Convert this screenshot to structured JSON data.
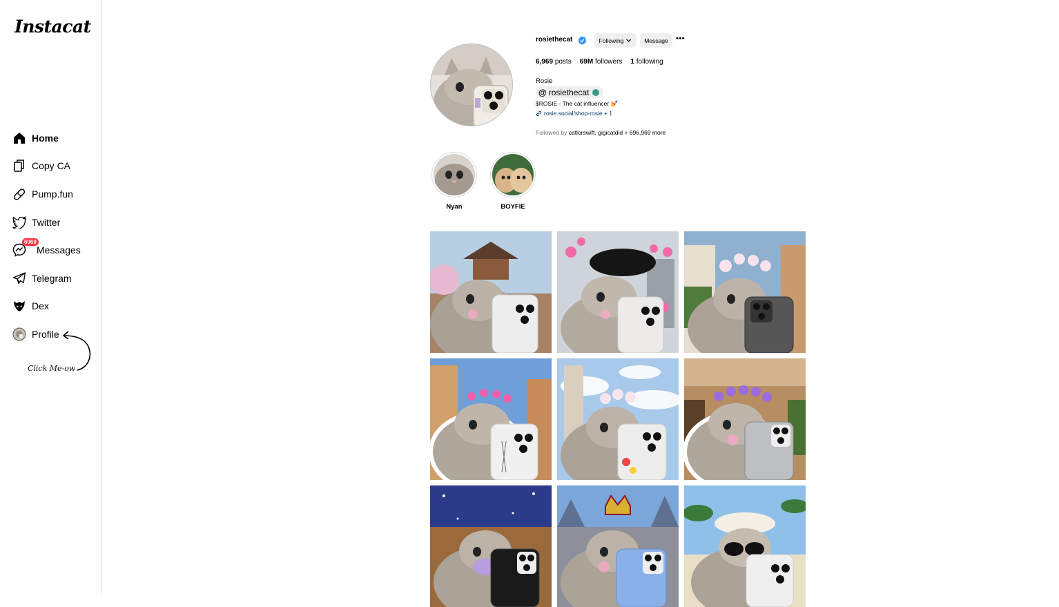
{
  "app": {
    "logo": "Instacat"
  },
  "sidebar": {
    "items": [
      {
        "label": "Home",
        "icon": "home-icon"
      },
      {
        "label": "Copy CA",
        "icon": "copy-icon"
      },
      {
        "label": "Pump.fun",
        "icon": "pill-icon"
      },
      {
        "label": "Twitter",
        "icon": "twitter-icon"
      },
      {
        "label": "Messages",
        "icon": "messenger-icon",
        "badge": "6969"
      },
      {
        "label": "Telegram",
        "icon": "telegram-icon"
      },
      {
        "label": "Dex",
        "icon": "dex-icon"
      },
      {
        "label": "Profile",
        "icon": "avatar-icon"
      }
    ],
    "click_hint": "Click Me-ow"
  },
  "profile": {
    "username": "rosiethecat",
    "following_button": "Following",
    "message_button": "Message",
    "more": "•••",
    "stats": {
      "posts": "6,969",
      "posts_label": "posts",
      "followers": "69M",
      "followers_label": "followers",
      "following": "1",
      "following_label": "following"
    },
    "name": "Rosie",
    "handle": "rosiethecat",
    "bio": "$ROSIE - The cat influencer 💅",
    "link": "rosie.social/shop-rosie + 1",
    "followed_by_prefix": "Followed by ",
    "followed_by_names": "catlorswift, gigicatdid",
    "followed_by_suffix": " + 696,969 more"
  },
  "highlights": [
    {
      "label": "Nyan"
    },
    {
      "label": "BOYFIE"
    }
  ],
  "colors": {
    "badge": "#ff3040",
    "verified": "#3897f0",
    "link": "#00376b"
  }
}
